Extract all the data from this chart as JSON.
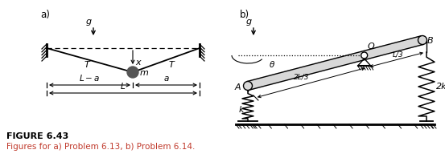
{
  "fig_width": 5.53,
  "fig_height": 2.02,
  "dpi": 100,
  "bg_color": "#ffffff",
  "label_a": "a)",
  "label_b": "b)",
  "figure_title": "FIGURE 6.43",
  "figure_caption": "Figures for a) Problem 6.13, b) Problem 6.14.",
  "title_color": "#000000",
  "caption_color": "#c0392b"
}
